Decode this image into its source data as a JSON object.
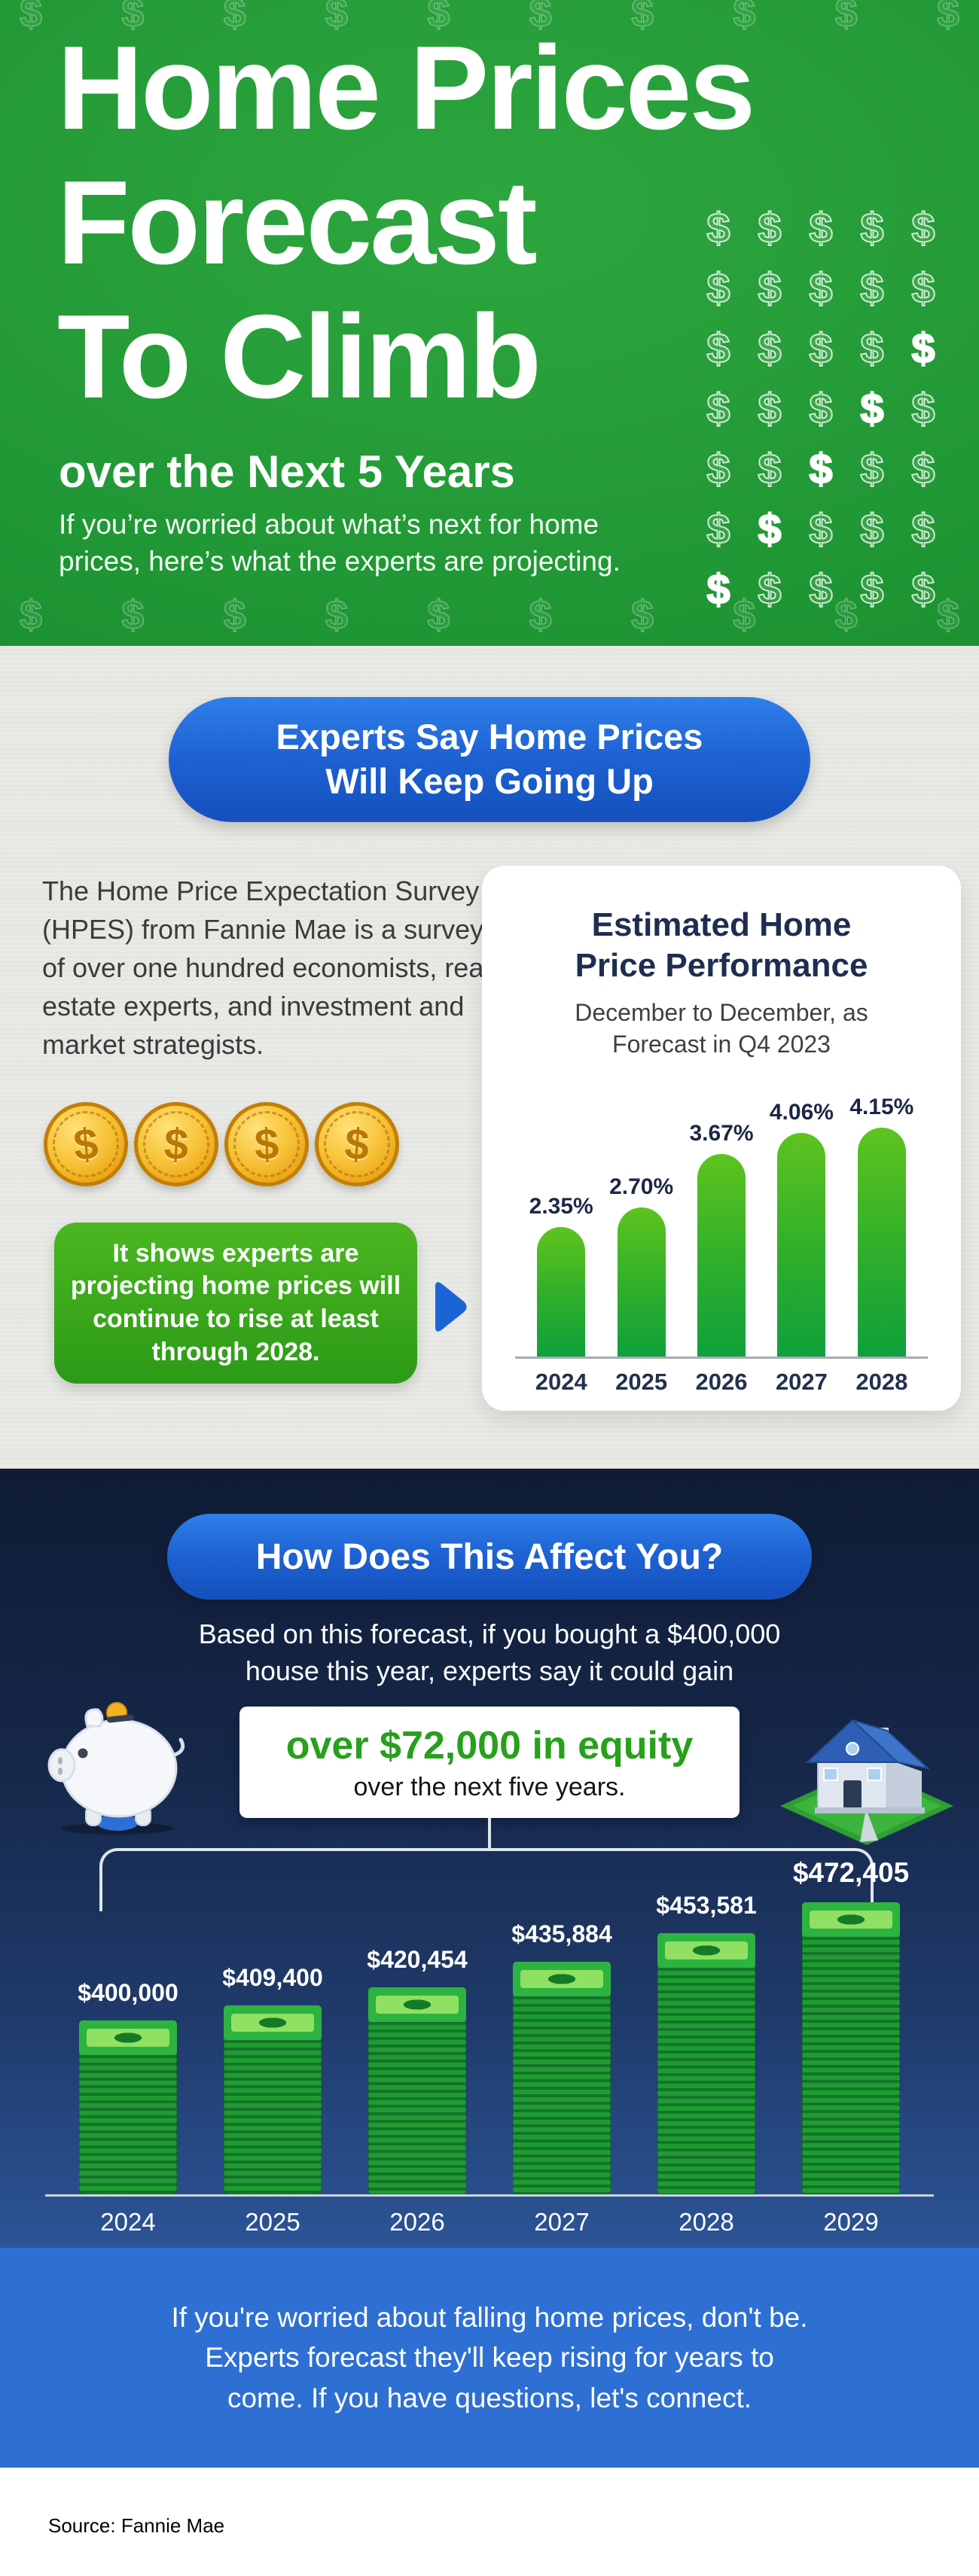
{
  "header": {
    "title_line1": "Home Prices",
    "title_line2": "Forecast",
    "title_line3": "To Climb",
    "subtitle": "over the Next 5 Years",
    "body": "If you’re worried about what’s next for home prices, here’s what the experts are projecting.",
    "dollar_grid": {
      "glyph": "$",
      "rows": 7,
      "cols": 5,
      "solid_cells": [
        [
          2,
          4
        ],
        [
          3,
          3
        ],
        [
          4,
          2
        ],
        [
          5,
          1
        ],
        [
          6,
          0
        ]
      ],
      "faint_row_count": 10
    }
  },
  "experts_section": {
    "pill": "Experts Say Home Prices Will Keep Going Up",
    "paragraph": "The Home Price Expectation Survey (HPES) from Fannie Mae is a survey of over one hundred economists, real estate experts, and investment and market strategists.",
    "green_box": "It shows experts are projecting home prices will continue to rise at least through 2028."
  },
  "affect_section": {
    "pill": "How Does This Affect You?",
    "intro": "Based on this forecast, if you bought a $400,000 house this year, experts say it could gain",
    "equity_highlight": "over $72,000 in equity",
    "equity_sub": "over the next five years."
  },
  "chart_data": [
    {
      "type": "bar",
      "title": "Estimated Home Price Performance",
      "subtitle": "December to December, as Forecast in Q4 2023",
      "categories": [
        "2024",
        "2025",
        "2026",
        "2027",
        "2028"
      ],
      "values": [
        2.35,
        2.7,
        3.67,
        4.06,
        4.15
      ],
      "labels": [
        "2.35%",
        "2.70%",
        "3.67%",
        "4.06%",
        "4.15%"
      ],
      "ylim": [
        0,
        4.5
      ],
      "grid": false,
      "legend": "none",
      "bar_color": "#2eae2b"
    },
    {
      "type": "bar",
      "categories": [
        "2024",
        "2025",
        "2026",
        "2027",
        "2028",
        "2029"
      ],
      "values": [
        400000,
        409400,
        420454,
        435884,
        453581,
        472405
      ],
      "labels": [
        "$400,000",
        "$409,400",
        "$420,454",
        "$435,884",
        "$453,581",
        "$472,405"
      ],
      "grid": false,
      "legend": "none",
      "bar_style": "money-stack"
    }
  ],
  "icons": {
    "coin": "$",
    "arrow": "right-arrow",
    "piggy_bank": "piggy-bank",
    "house": "house"
  },
  "footer": {
    "cta_lines": [
      "If you're worried about falling home prices, don't be.",
      "Experts forecast they'll keep rising for years to",
      "come. If you have questions, let's connect."
    ],
    "source": "Source: Fannie Mae"
  },
  "colors": {
    "header_green": "#1f9634",
    "pill_blue": "#1d63d2",
    "chart_bar_green": "#2eae2b",
    "dark_navy_bg": "#15294e",
    "equity_green": "#27a01b",
    "cta_blue": "#2e6fd3",
    "coin_gold": "#f3b11f"
  }
}
